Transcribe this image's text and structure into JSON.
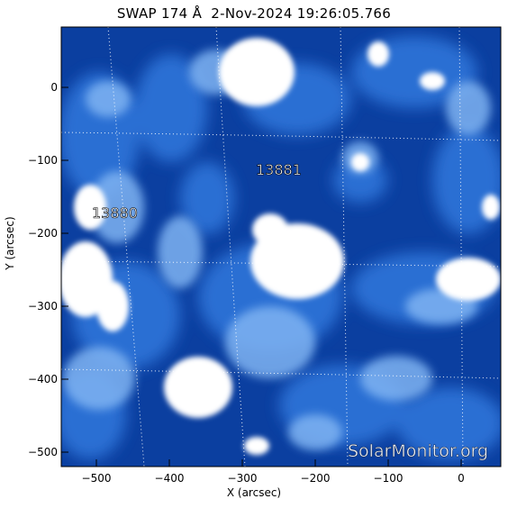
{
  "title": "SWAP 174 Å  2-Nov-2024 19:26:05.766",
  "x_axis_label": "X (arcsec)",
  "y_axis_label": "Y (arcsec)",
  "x_ticks": [
    "−500",
    "−400",
    "−300",
    "−200",
    "−100",
    "0"
  ],
  "y_ticks": [
    "0",
    "−100",
    "−200",
    "−300",
    "−400",
    "−500"
  ],
  "active_regions": [
    {
      "label": "13881"
    },
    {
      "label": "13880"
    }
  ],
  "watermark": "SolarMonitor.org",
  "colors": {
    "background": "#0a3d9a",
    "mid": "#2e73d8",
    "bright": "#7fb3f2",
    "saturated": "#ffffff"
  }
}
